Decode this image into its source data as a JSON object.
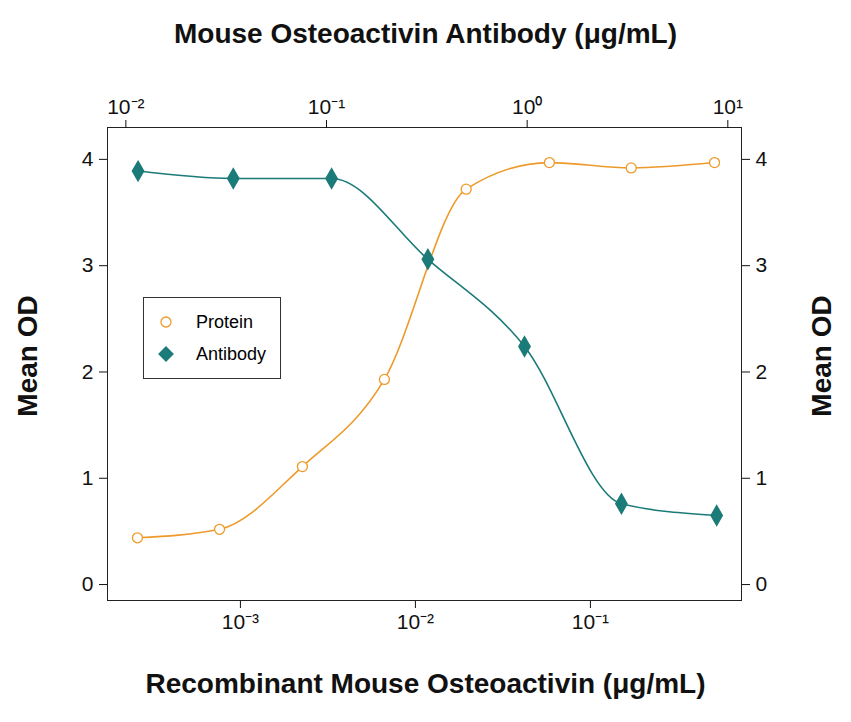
{
  "chart_data": {
    "type": "scatter",
    "xlabel": "Recombinant Mouse Osteoactivin (μg/mL)",
    "x2label": "Mouse Osteoactivin Antibody (μg/mL)",
    "ylabel": "Mean OD",
    "y2label": "Mean OD",
    "log": "x",
    "xlim": [
      0.000174,
      0.73
    ],
    "xticks": [
      {
        "value": 0.001,
        "label": "10⁻³"
      },
      {
        "value": 0.01,
        "label": "10⁻²"
      },
      {
        "value": 0.1,
        "label": "10⁻¹"
      }
    ],
    "x2lim": [
      0.0081,
      11.7
    ],
    "x2ticks": [
      {
        "value": 0.01,
        "label": "10⁻²"
      },
      {
        "value": 0.1,
        "label": "10⁻¹"
      },
      {
        "value": 1,
        "label": "10⁰"
      },
      {
        "value": 10,
        "label": "10¹"
      }
    ],
    "ylim": [
      -0.15,
      4.3
    ],
    "yticks": [
      0,
      1,
      2,
      3,
      4
    ],
    "y2lim": [
      -0.15,
      4.3
    ],
    "y2ticks": [
      0,
      1,
      2,
      3,
      4
    ],
    "legend": "left",
    "series": [
      {
        "name": "Protein",
        "color": "#ee9a2a",
        "marker": "open_circle",
        "line_style": "solid",
        "x": [
          0.000258,
          0.00076,
          0.00226,
          0.00665,
          0.0195,
          0.0583,
          0.171,
          0.512
        ],
        "values": [
          0.44,
          0.52,
          1.11,
          1.93,
          3.72,
          3.97,
          3.92,
          3.97
        ]
      },
      {
        "name": "Antibody",
        "color": "#1b7b78",
        "marker": "diamond",
        "line_style": "solid",
        "axis": "x2",
        "x": [
          0.0115,
          0.0343,
          0.106,
          0.32,
          0.97,
          2.95,
          8.8
        ],
        "values": [
          3.89,
          3.82,
          3.82,
          3.06,
          2.24,
          0.76,
          0.65
        ]
      }
    ]
  }
}
